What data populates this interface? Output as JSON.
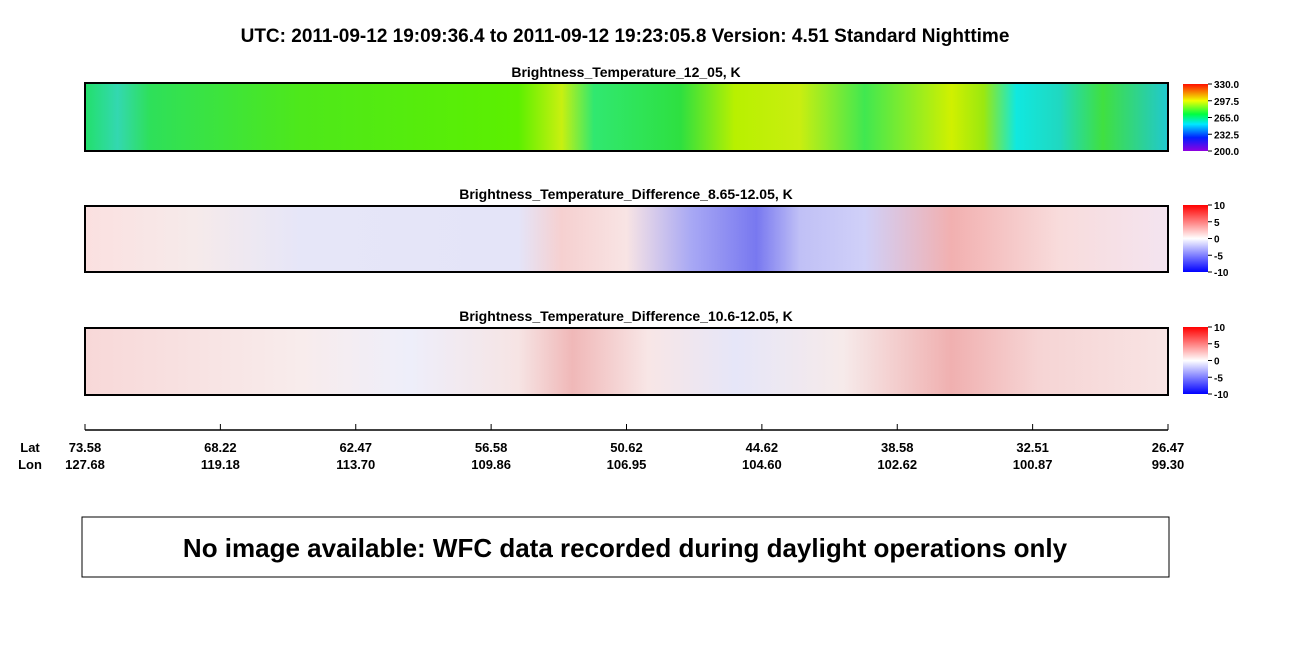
{
  "header": {
    "title": "UTC:  2011-09-12   19:09:36.4  to  2011-09-12   19:23:05.8    Version: 4.51  Standard Nighttime"
  },
  "panels": [
    {
      "title": "Brightness_Temperature_12_05, K",
      "colorbar_labels": [
        "330.0",
        "297.5",
        "265.0",
        "232.5",
        "200.0"
      ]
    },
    {
      "title": "Brightness_Temperature_Difference_8.65-12.05, K",
      "colorbar_labels": [
        "10",
        "5",
        "0",
        "-5",
        "-10"
      ]
    },
    {
      "title": "Brightness_Temperature_Difference_10.6-12.05, K",
      "colorbar_labels": [
        "10",
        "5",
        "0",
        "-5",
        "-10"
      ]
    }
  ],
  "axis": {
    "lat_label": "Lat",
    "lon_label": "Lon",
    "lat": [
      "73.58",
      "68.22",
      "62.47",
      "56.58",
      "50.62",
      "44.62",
      "38.58",
      "32.51",
      "26.47"
    ],
    "lon": [
      "127.68",
      "119.18",
      "113.70",
      "109.86",
      "106.95",
      "104.60",
      "102.62",
      "100.87",
      "99.30"
    ]
  },
  "notice": "No image available: WFC data recorded during daylight operations only"
}
